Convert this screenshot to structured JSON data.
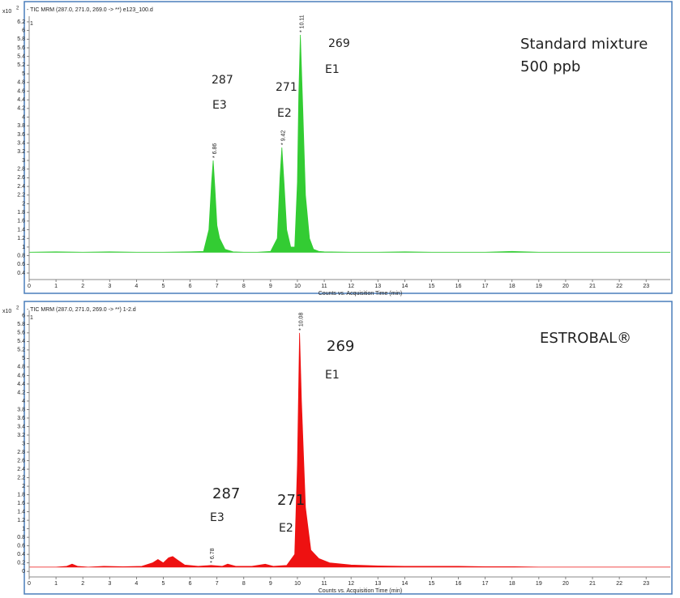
{
  "chart_data": [
    {
      "type": "area",
      "header": "- TIC MRM (287.0, 271.0, 269.0 -> **) e123_100.d",
      "y_scale_label": "x10",
      "y_scale_exponent": "2",
      "corner_label": "1",
      "x_label": "Counts vs. Acquisition Time (min)",
      "color": "#33cc33",
      "x": [
        0,
        1,
        2,
        3,
        4,
        5,
        6,
        6.5,
        6.7,
        6.8,
        6.86,
        6.92,
        7.0,
        7.1,
        7.3,
        7.6,
        8,
        8.5,
        9.0,
        9.25,
        9.35,
        9.42,
        9.5,
        9.6,
        9.75,
        9.9,
        10.0,
        10.05,
        10.11,
        10.2,
        10.3,
        10.45,
        10.6,
        10.8,
        11,
        12,
        13,
        14,
        15,
        16,
        17,
        18,
        19,
        20,
        21,
        22,
        23,
        23.9
      ],
      "values": [
        0.88,
        0.89,
        0.88,
        0.89,
        0.88,
        0.88,
        0.89,
        0.9,
        1.4,
        2.5,
        3.0,
        2.4,
        1.5,
        1.2,
        0.95,
        0.89,
        0.88,
        0.88,
        0.9,
        1.2,
        2.6,
        3.3,
        2.5,
        1.4,
        1.0,
        1.0,
        2.5,
        4.5,
        5.9,
        4.2,
        2.2,
        1.2,
        0.95,
        0.9,
        0.89,
        0.88,
        0.88,
        0.89,
        0.88,
        0.88,
        0.88,
        0.9,
        0.88,
        0.88,
        0.88,
        0.88,
        0.88,
        0.88
      ],
      "peak_labels": [
        {
          "x": 6.86,
          "y": 3.0,
          "label": "* 6.86"
        },
        {
          "x": 9.42,
          "y": 3.3,
          "label": "* 9.42"
        },
        {
          "x": 10.11,
          "y": 5.9,
          "label": "* 10.11"
        }
      ],
      "annotations": [
        "287",
        "E3",
        "271",
        "E2",
        "269",
        "E1",
        "Standard mixture",
        "500 ppb"
      ],
      "xlim": [
        0,
        23.9
      ],
      "ylim": [
        0.25,
        6.33
      ],
      "xticks": [
        0,
        1,
        2,
        3,
        4,
        5,
        6,
        7,
        8,
        9,
        10,
        11,
        12,
        13,
        14,
        15,
        16,
        17,
        18,
        19,
        20,
        21,
        22,
        23
      ],
      "yticks": [
        0.4,
        0.6,
        0.8,
        1,
        1.2,
        1.4,
        1.6,
        1.8,
        2,
        2.2,
        2.4,
        2.6,
        2.8,
        3,
        3.2,
        3.4,
        3.6,
        3.8,
        4,
        4.2,
        4.4,
        4.6,
        4.8,
        5,
        5.2,
        5.4,
        5.6,
        5.8,
        6,
        6.2
      ]
    },
    {
      "type": "area",
      "header": "- TIC MRM (287.0, 271.0, 269.0 -> **) 1-2.d",
      "y_scale_label": "x10",
      "y_scale_exponent": "2",
      "corner_label": "1",
      "x_label": "Counts vs. Acquisition Time (min)",
      "color": "#ee1111",
      "x": [
        0,
        1,
        1.4,
        1.6,
        1.8,
        2.2,
        2.8,
        3.5,
        4.2,
        4.6,
        4.8,
        5.0,
        5.2,
        5.35,
        5.5,
        5.8,
        6.3,
        6.78,
        7.2,
        7.4,
        7.7,
        8.3,
        8.8,
        9.1,
        9.6,
        9.9,
        10.0,
        10.08,
        10.15,
        10.3,
        10.5,
        10.8,
        11.2,
        12,
        13,
        14,
        15,
        16,
        17,
        18,
        19,
        20,
        21,
        22,
        23,
        23.9
      ],
      "values": [
        0.1,
        0.1,
        0.12,
        0.17,
        0.12,
        0.1,
        0.12,
        0.11,
        0.12,
        0.2,
        0.28,
        0.2,
        0.32,
        0.35,
        0.28,
        0.15,
        0.12,
        0.14,
        0.12,
        0.17,
        0.12,
        0.12,
        0.17,
        0.12,
        0.14,
        0.4,
        2.5,
        5.6,
        4.0,
        1.5,
        0.5,
        0.3,
        0.2,
        0.15,
        0.13,
        0.12,
        0.12,
        0.12,
        0.11,
        0.11,
        0.1,
        0.1,
        0.1,
        0.1,
        0.1,
        0.1
      ],
      "peak_labels": [
        {
          "x": 6.78,
          "y": 0.14,
          "label": "* 6.78"
        },
        {
          "x": 10.08,
          "y": 5.6,
          "label": "* 10.08"
        }
      ],
      "annotations": [
        "287",
        "E3",
        "271",
        "E2",
        "269",
        "E1",
        "ESTROBAL®"
      ],
      "xlim": [
        0,
        23.9
      ],
      "ylim": [
        -0.13,
        6.13
      ],
      "xticks": [
        0,
        1,
        2,
        3,
        4,
        5,
        6,
        7,
        8,
        9,
        10,
        11,
        12,
        13,
        14,
        15,
        16,
        17,
        18,
        19,
        20,
        21,
        22,
        23
      ],
      "yticks": [
        0,
        0.2,
        0.4,
        0.6,
        0.8,
        1,
        1.2,
        1.4,
        1.6,
        1.8,
        2,
        2.2,
        2.4,
        2.6,
        2.8,
        3,
        3.2,
        3.4,
        3.6,
        3.8,
        4,
        4.2,
        4.4,
        4.6,
        4.8,
        5,
        5.2,
        5.4,
        5.6,
        5.8,
        6
      ]
    }
  ]
}
